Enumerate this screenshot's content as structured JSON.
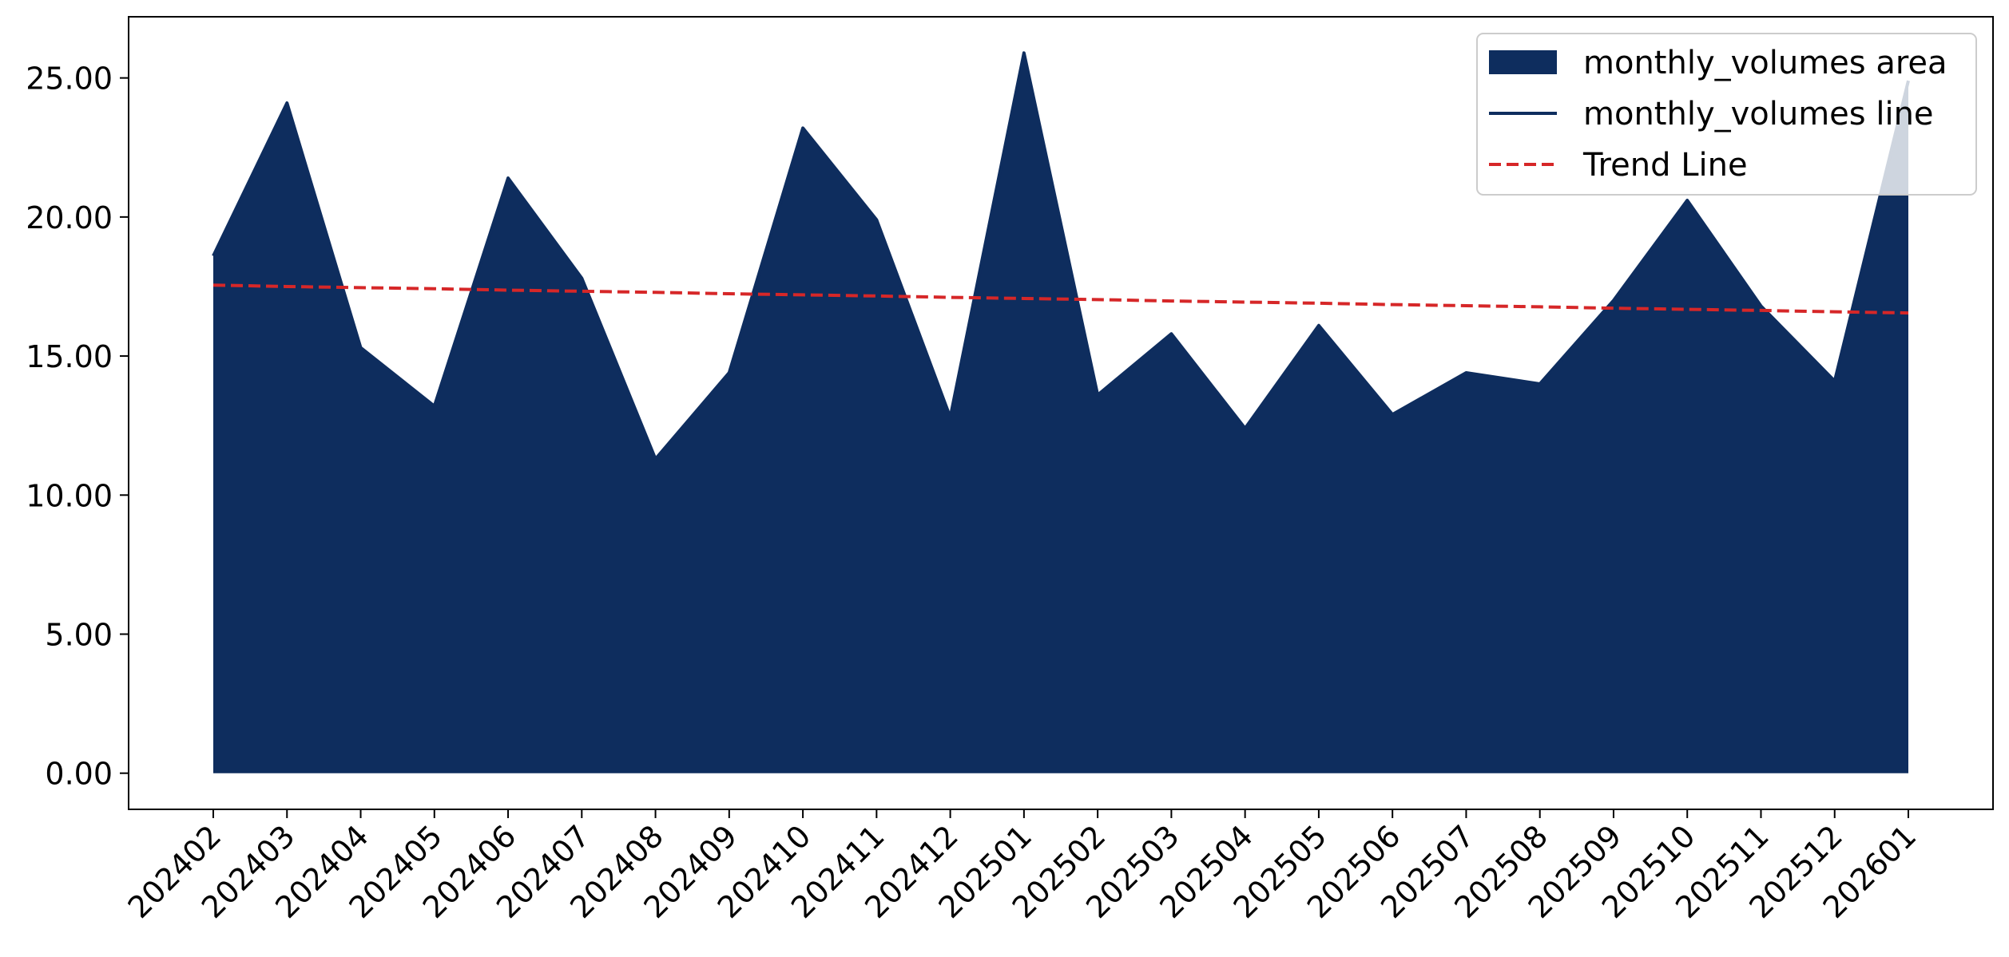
{
  "chart_data": {
    "type": "area",
    "title": "",
    "xlabel": "",
    "ylabel": "",
    "categories": [
      "202402",
      "202403",
      "202404",
      "202405",
      "202406",
      "202407",
      "202408",
      "202409",
      "202410",
      "202411",
      "202412",
      "202501",
      "202502",
      "202503",
      "202504",
      "202505",
      "202506",
      "202507",
      "202508",
      "202509",
      "202510",
      "202511",
      "202512",
      "202601"
    ],
    "series": [
      {
        "name": "monthly_volumes area",
        "kind": "area",
        "values": [
          18.6,
          24.1,
          15.3,
          13.2,
          21.4,
          17.8,
          11.3,
          14.4,
          23.2,
          19.9,
          12.8,
          25.9,
          13.6,
          15.8,
          12.4,
          16.1,
          12.9,
          14.4,
          14.0,
          17.0,
          20.6,
          16.8,
          14.1,
          24.9
        ],
        "color": "#0e2d5e"
      },
      {
        "name": "monthly_volumes line",
        "kind": "line",
        "values": [
          18.6,
          24.1,
          15.3,
          13.2,
          21.4,
          17.8,
          11.3,
          14.4,
          23.2,
          19.9,
          12.8,
          25.9,
          13.6,
          15.8,
          12.4,
          16.1,
          12.9,
          14.4,
          14.0,
          17.0,
          20.6,
          16.8,
          14.1,
          24.9
        ],
        "color": "#0e2d5e"
      },
      {
        "name": "Trend Line",
        "kind": "dashed-line",
        "values": [
          17.55,
          17.5,
          17.46,
          17.42,
          17.37,
          17.33,
          17.29,
          17.24,
          17.2,
          17.16,
          17.11,
          17.07,
          17.03,
          16.98,
          16.94,
          16.9,
          16.85,
          16.81,
          16.77,
          16.72,
          16.68,
          16.64,
          16.59,
          16.55
        ],
        "color": "#d62728"
      }
    ],
    "ylim": [
      -1.3,
      27.2
    ],
    "yticks": [
      "0.00",
      "5.00",
      "10.00",
      "15.00",
      "20.00",
      "25.00"
    ],
    "ytick_values": [
      0,
      5,
      10,
      15,
      20,
      25
    ],
    "grid": false,
    "legend_position": "top-right"
  }
}
